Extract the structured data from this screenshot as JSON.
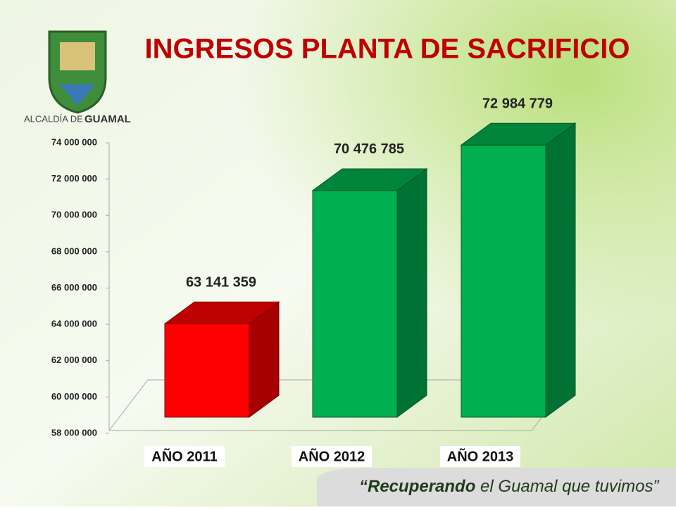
{
  "chart_data": {
    "type": "bar3d",
    "title": "INGRESOS PLANTA DE SACRIFICIO",
    "categories": [
      "AÑO 2011",
      "AÑO 2012",
      "AÑO 2013"
    ],
    "values": [
      63141359,
      70476785,
      72984779
    ],
    "value_labels": [
      "63 141 359",
      "70 476 785",
      "72 984 779"
    ],
    "colors": [
      "#ff0000",
      "#00b050",
      "#00b050"
    ],
    "ylim": [
      58000000,
      74000000
    ],
    "yticks": [
      {
        "value": 58000000,
        "label": "58 000 000"
      },
      {
        "value": 60000000,
        "label": "60 000 000"
      },
      {
        "value": 62000000,
        "label": "62 000 000"
      },
      {
        "value": 64000000,
        "label": "64 000 000"
      },
      {
        "value": 66000000,
        "label": "66 000 000"
      },
      {
        "value": 68000000,
        "label": "68 000 000"
      },
      {
        "value": 70000000,
        "label": "70 000 000"
      },
      {
        "value": 72000000,
        "label": "72 000 000"
      },
      {
        "value": 74000000,
        "label": "74 000 000"
      }
    ],
    "grid": false
  },
  "branding": {
    "logo_prefix": "ALCALDÍA DE",
    "logo_name": "GUAMAL",
    "slogan_bold": "“Recuperando",
    "slogan_rest": "el Guamal que tuvimos”"
  }
}
